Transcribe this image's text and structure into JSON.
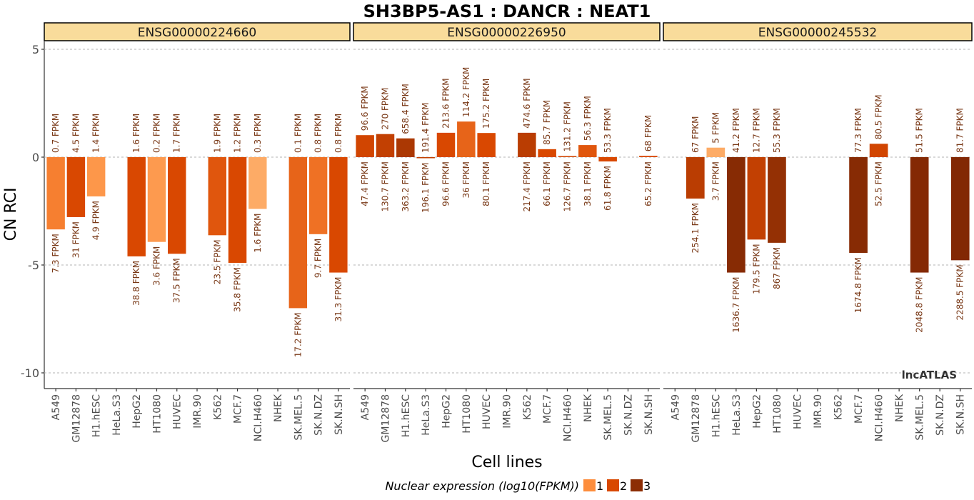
{
  "chart_data": {
    "type": "bar",
    "title": "SH3BP5-AS1 : DANCR : NEAT1",
    "xlabel": "Cell lines",
    "ylabel": "CN RCI",
    "ylim": [
      -10.8,
      5.4
    ],
    "yticks": [
      5,
      0,
      -5,
      -10
    ],
    "grid": true,
    "watermark": "lncATLAS",
    "categories": [
      "A549",
      "GM12878",
      "H1.hESC",
      "HeLa.S3",
      "HepG2",
      "HT1080",
      "HUVEC",
      "IMR.90",
      "K562",
      "MCF.7",
      "NCI.H460",
      "NHEK",
      "SK.MEL.5",
      "SK.N.DZ",
      "SK.N.SH"
    ],
    "legend": {
      "title": "Nuclear expression (log10(FPKM))",
      "position": "bottom",
      "items": [
        {
          "label": "1",
          "color": "#fd8d3c"
        },
        {
          "label": "2",
          "color": "#d94801"
        },
        {
          "label": "3",
          "color": "#8c2d04"
        }
      ]
    },
    "panels": [
      {
        "gene": "ENSG00000224660",
        "bars": [
          {
            "cell": "A549",
            "value": -3.35,
            "cyto": "0.7 FPKM",
            "nuc": "7.3 FPKM",
            "level": 1.6
          },
          {
            "cell": "GM12878",
            "value": -2.78,
            "cyto": "4.5 FPKM",
            "nuc": "31 FPKM",
            "level": 2.0
          },
          {
            "cell": "H1.hESC",
            "value": -1.82,
            "cyto": "1.4 FPKM",
            "nuc": "4.9 FPKM",
            "level": 1.2
          },
          {
            "cell": "HepG2",
            "value": -4.6,
            "cyto": "1.6 FPKM",
            "nuc": "38.8 FPKM",
            "level": 2.0
          },
          {
            "cell": "HT1080",
            "value": -3.93,
            "cyto": "0.2 FPKM",
            "nuc": "3.6 FPKM",
            "level": 1.1
          },
          {
            "cell": "HUVEC",
            "value": -4.48,
            "cyto": "1.7 FPKM",
            "nuc": "37.5 FPKM",
            "level": 2.0
          },
          {
            "cell": "K562",
            "value": -3.62,
            "cyto": "1.9 FPKM",
            "nuc": "23.5 FPKM",
            "level": 1.9
          },
          {
            "cell": "MCF.7",
            "value": -4.9,
            "cyto": "1.2 FPKM",
            "nuc": "35.8 FPKM",
            "level": 2.0
          },
          {
            "cell": "NCI.H460",
            "value": -2.4,
            "cyto": "0.3 FPKM",
            "nuc": "1.6 FPKM",
            "level": 0.6
          },
          {
            "cell": "SK.MEL.5",
            "value": -7.0,
            "cyto": "0.1 FPKM",
            "nuc": "17.2 FPKM",
            "level": 1.8
          },
          {
            "cell": "SK.N.DZ",
            "value": -3.57,
            "cyto": "0.8 FPKM",
            "nuc": "9.7 FPKM",
            "level": 1.7
          },
          {
            "cell": "SK.N.SH",
            "value": -5.35,
            "cyto": "0.8 FPKM",
            "nuc": "31.3 FPKM",
            "level": 2.0
          }
        ]
      },
      {
        "gene": "ENSG00000226950",
        "bars": [
          {
            "cell": "A549",
            "value": 1.02,
            "cyto": "96.6 FPKM",
            "nuc": "47.4 FPKM",
            "level": 2.1
          },
          {
            "cell": "GM12878",
            "value": 1.07,
            "cyto": "270 FPKM",
            "nuc": "130.7 FPKM",
            "level": 2.3
          },
          {
            "cell": "H1.hESC",
            "value": 0.87,
            "cyto": "658.4 FPKM",
            "nuc": "363.2 FPKM",
            "level": 2.6
          },
          {
            "cell": "HeLa.S3",
            "value": -0.05,
            "cyto": "191.4 FPKM",
            "nuc": "196.1 FPKM",
            "level": 2.3
          },
          {
            "cell": "HepG2",
            "value": 1.13,
            "cyto": "213.6 FPKM",
            "nuc": "96.6 FPKM",
            "level": 2.0
          },
          {
            "cell": "HT1080",
            "value": 1.65,
            "cyto": "114.2 FPKM",
            "nuc": "36 FPKM",
            "level": 1.8
          },
          {
            "cell": "HUVEC",
            "value": 1.12,
            "cyto": "175.2 FPKM",
            "nuc": "80.1 FPKM",
            "level": 2.0
          },
          {
            "cell": "K562",
            "value": 1.13,
            "cyto": "474.6 FPKM",
            "nuc": "217.4 FPKM",
            "level": 2.4
          },
          {
            "cell": "MCF.7",
            "value": 0.37,
            "cyto": "85.7 FPKM",
            "nuc": "66.1 FPKM",
            "level": 2.0
          },
          {
            "cell": "NCI.H460",
            "value": 0.05,
            "cyto": "131.2 FPKM",
            "nuc": "126.7 FPKM",
            "level": 2.1
          },
          {
            "cell": "NHEK",
            "value": 0.56,
            "cyto": "56.3 FPKM",
            "nuc": "38.1 FPKM",
            "level": 1.9
          },
          {
            "cell": "SK.MEL.5",
            "value": -0.2,
            "cyto": "53.3 FPKM",
            "nuc": "61.8 FPKM",
            "level": 2.0
          },
          {
            "cell": "SK.N.SH",
            "value": 0.06,
            "cyto": "68 FPKM",
            "nuc": "65.2 FPKM",
            "level": 2.0
          }
        ]
      },
      {
        "gene": "ENSG00000245532",
        "bars": [
          {
            "cell": "GM12878",
            "value": -1.92,
            "cyto": "67 FPKM",
            "nuc": "254.1 FPKM",
            "level": 2.4
          },
          {
            "cell": "H1.hESC",
            "value": 0.44,
            "cyto": "5 FPKM",
            "nuc": "3.7 FPKM",
            "level": 0.6
          },
          {
            "cell": "HeLa.S3",
            "value": -5.35,
            "cyto": "41.2 FPKM",
            "nuc": "1636.7 FPKM",
            "level": 3.2
          },
          {
            "cell": "HepG2",
            "value": -3.82,
            "cyto": "12.7 FPKM",
            "nuc": "179.5 FPKM",
            "level": 2.3
          },
          {
            "cell": "HT1080",
            "value": -3.97,
            "cyto": "55.3 FPKM",
            "nuc": "867 FPKM",
            "level": 2.9
          },
          {
            "cell": "MCF.7",
            "value": -4.44,
            "cyto": "77.3 FPKM",
            "nuc": "1674.8 FPKM",
            "level": 3.2
          },
          {
            "cell": "NCI.H460",
            "value": 0.62,
            "cyto": "80.5 FPKM",
            "nuc": "52.5 FPKM",
            "level": 2.1
          },
          {
            "cell": "SK.MEL.5",
            "value": -5.35,
            "cyto": "51.5 FPKM",
            "nuc": "2048.8 FPKM",
            "level": 3.3
          },
          {
            "cell": "SK.N.SH",
            "value": -4.78,
            "cyto": "81.7 FPKM",
            "nuc": "2288.5 FPKM",
            "level": 3.4
          }
        ]
      }
    ]
  }
}
